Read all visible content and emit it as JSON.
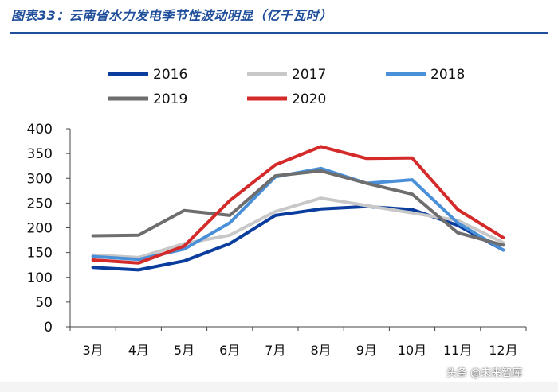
{
  "header": {
    "title": "图表33：云南省水力发电季节性波动明显（亿千瓦时）"
  },
  "watermark": "头条 @未来智库",
  "chart_data": {
    "type": "line",
    "title": "图表33：云南省水力发电季节性波动明显（亿千瓦时）",
    "xlabel": "",
    "ylabel": "",
    "ylim": [
      0,
      400
    ],
    "yticks": [
      "0",
      "50",
      "100",
      "150",
      "200",
      "250",
      "300",
      "350",
      "400"
    ],
    "categories": [
      "3月",
      "4月",
      "5月",
      "6月",
      "7月",
      "8月",
      "9月",
      "10月",
      "11月",
      "12月"
    ],
    "legend_position": "top",
    "series": [
      {
        "name": "2016",
        "color": "#0a3d9e",
        "values": [
          120,
          115,
          133,
          168,
          225,
          238,
          243,
          237,
          205,
          155
        ]
      },
      {
        "name": "2017",
        "color": "#c8c8c8",
        "values": [
          145,
          140,
          168,
          185,
          233,
          260,
          245,
          230,
          215,
          170
        ]
      },
      {
        "name": "2018",
        "color": "#4a90d9",
        "values": [
          142,
          136,
          157,
          210,
          303,
          320,
          290,
          297,
          210,
          155
        ]
      },
      {
        "name": "2019",
        "color": "#6e6e6e",
        "values": [
          184,
          185,
          235,
          225,
          305,
          315,
          290,
          268,
          190,
          165
        ]
      },
      {
        "name": "2020",
        "color": "#d42a2a",
        "values": [
          135,
          129,
          163,
          255,
          327,
          364,
          340,
          341,
          237,
          180
        ]
      }
    ]
  }
}
